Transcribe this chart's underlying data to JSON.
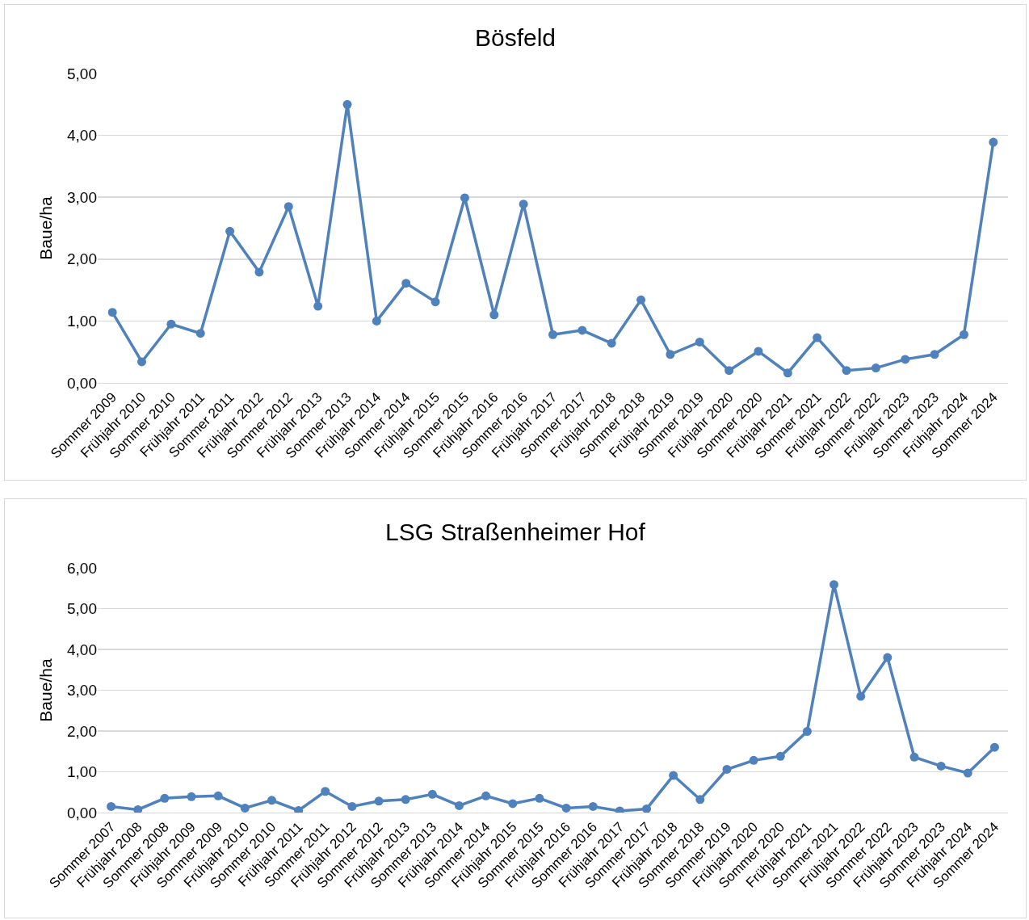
{
  "chart_data": [
    {
      "type": "line",
      "title": "Bösfeld",
      "ylabel": "Baue/ha",
      "categories": [
        "Sommer 2009",
        "Frühjahr 2010",
        "Sommer 2010",
        "Frühjahr 2011",
        "Sommer 2011",
        "Frühjahr 2012",
        "Sommer 2012",
        "Frühjahr 2013",
        "Sommer 2013",
        "Frühjahr 2014",
        "Sommer 2014",
        "Frühjahr 2015",
        "Sommer 2015",
        "Frühjahr 2016",
        "Sommer 2016",
        "Frühjahr 2017",
        "Sommer 2017",
        "Frühjahr 2018",
        "Sommer 2018",
        "Frühjahr 2019",
        "Sommer 2019",
        "Frühjahr 2020",
        "Sommer 2020",
        "Frühjahr 2021",
        "Sommer 2021",
        "Frühjahr 2022",
        "Sommer 2022",
        "Frühjahr 2023",
        "Sommer 2023",
        "Frühjahr 2024",
        "Sommer 2024"
      ],
      "series": [
        {
          "color": "#4f81bd",
          "values": [
            1.14,
            0.34,
            0.95,
            0.8,
            2.45,
            1.79,
            2.85,
            1.24,
            4.5,
            1.0,
            1.61,
            1.31,
            2.99,
            1.1,
            2.89,
            0.78,
            0.85,
            0.64,
            1.34,
            0.46,
            0.66,
            0.2,
            0.51,
            0.16,
            0.73,
            0.2,
            0.24,
            0.38,
            0.46,
            0.78,
            3.89
          ]
        }
      ],
      "ylim": [
        0,
        5
      ],
      "yticks": [
        {
          "value": 0,
          "label": "0,00"
        },
        {
          "value": 1,
          "label": "1,00"
        },
        {
          "value": 2,
          "label": "2,00"
        },
        {
          "value": 3,
          "label": "3,00"
        },
        {
          "value": 4,
          "label": "4,00"
        },
        {
          "value": 5,
          "label": "5,00"
        }
      ],
      "grid": "y",
      "marker": "circle",
      "line_style": "solid"
    },
    {
      "type": "line",
      "title": "LSG Straßenheimer Hof",
      "ylabel": "Baue/ha",
      "categories": [
        "Sommer 2007",
        "Frühjahr 2008",
        "Sommer 2008",
        "Frühjahr 2009",
        "Sommer 2009",
        "Frühjahr 2010",
        "Sommer 2010",
        "Frühjahr 2011",
        "Sommer 2011",
        "Frühjahr 2012",
        "Sommer 2012",
        "Frühjahr 2013",
        "Sommer 2013",
        "Frühjahr 2014",
        "Sommer 2014",
        "Frühjahr 2015",
        "Sommer 2015",
        "Frühjahr 2016",
        "Sommer 2016",
        "Frühjahr 2017",
        "Sommer 2017",
        "Frühjahr 2018",
        "Sommer 2018",
        "Sommer 2019",
        "Frühjahr 2020",
        "Sommer 2020",
        "Frühjahr 2021",
        "Sommer 2021",
        "Frühjahr 2022",
        "Sommer 2022",
        "Frühjahr 2023",
        "Sommer 2023",
        "Frühjahr 2024",
        "Sommer 2024"
      ],
      "series": [
        {
          "color": "#4f81bd",
          "values": [
            0.15,
            0.07,
            0.35,
            0.39,
            0.41,
            0.11,
            0.3,
            0.05,
            0.52,
            0.15,
            0.28,
            0.32,
            0.45,
            0.17,
            0.41,
            0.22,
            0.35,
            0.11,
            0.15,
            0.04,
            0.09,
            0.91,
            0.32,
            1.06,
            1.28,
            1.38,
            1.99,
            5.59,
            2.85,
            3.8,
            1.36,
            1.14,
            0.97,
            1.6
          ]
        }
      ],
      "ylim": [
        0,
        6
      ],
      "yticks": [
        {
          "value": 0,
          "label": "0,00"
        },
        {
          "value": 1,
          "label": "1,00"
        },
        {
          "value": 2,
          "label": "2,00"
        },
        {
          "value": 3,
          "label": "3,00"
        },
        {
          "value": 4,
          "label": "4,00"
        },
        {
          "value": 5,
          "label": "5,00"
        },
        {
          "value": 6,
          "label": "6,00"
        }
      ],
      "grid": "y",
      "marker": "circle",
      "line_style": "solid"
    }
  ]
}
